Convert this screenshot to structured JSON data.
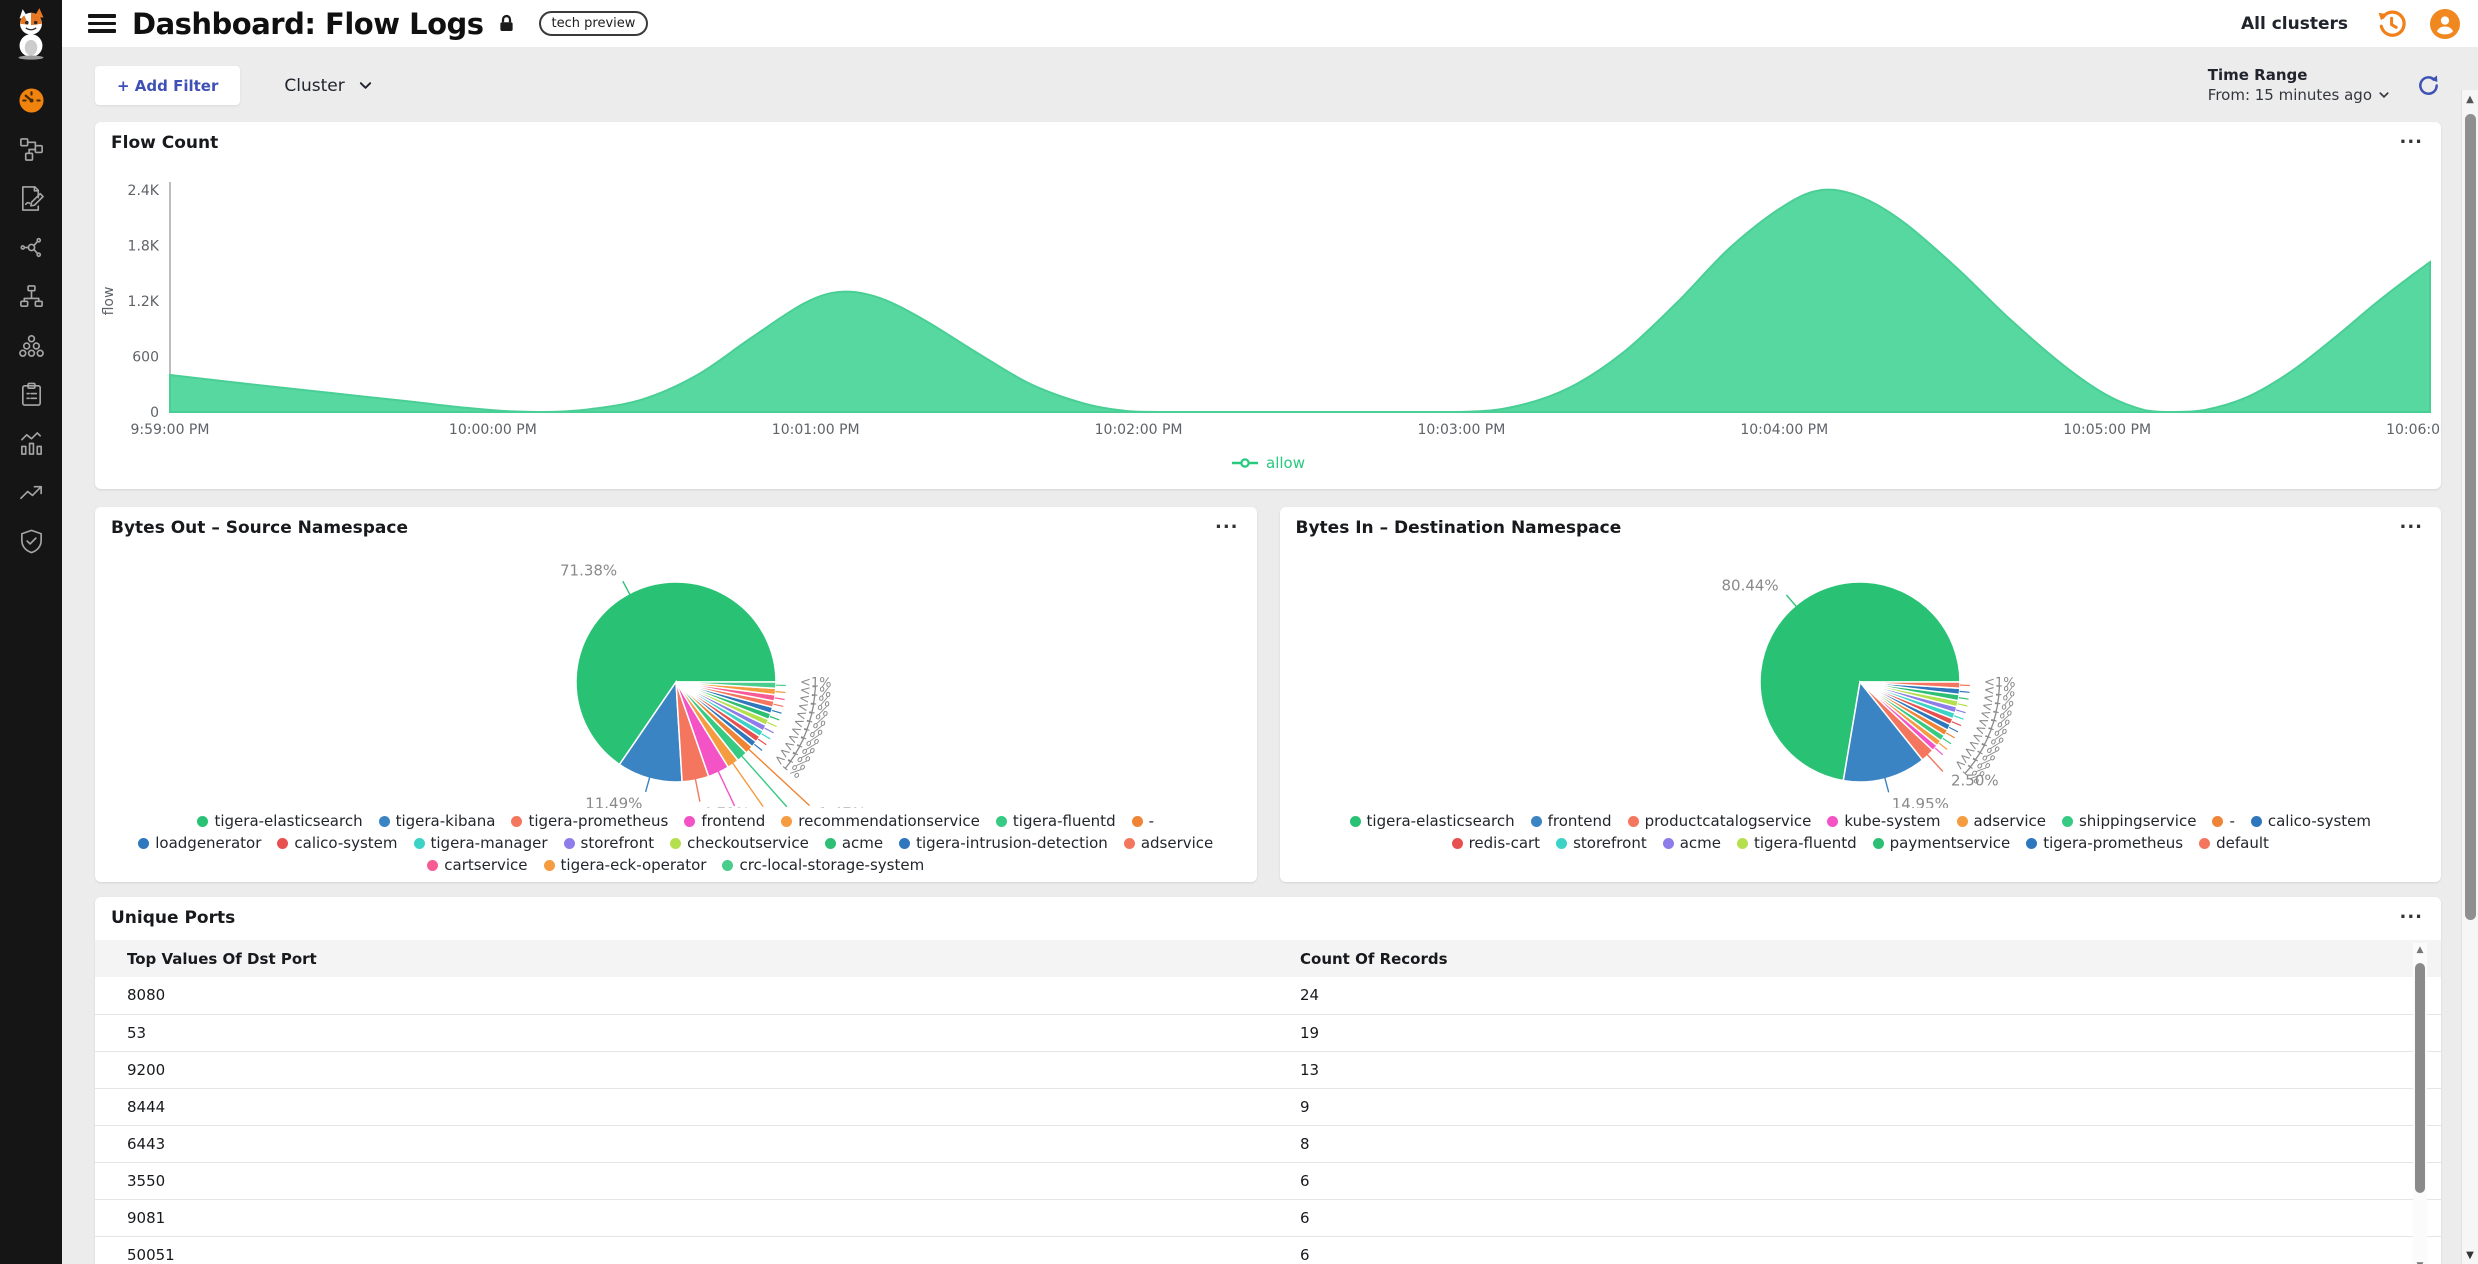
{
  "header": {
    "title": "Dashboard: Flow Logs",
    "badge": "tech preview",
    "cluster_selector": "All clusters"
  },
  "sidebar": {
    "icons": [
      "calico-cat-logo",
      "dashboard-gauge-icon",
      "service-graph-icon",
      "flow-log-edit-icon",
      "share-nodes-icon",
      "sitemap-icon",
      "cluster-nodes-icon",
      "clipboard-icon",
      "stats-chart-icon",
      "trend-up-icon",
      "shield-check-icon"
    ]
  },
  "filter_bar": {
    "add_filter_label": "+ Add Filter",
    "cluster_label": "Cluster",
    "time_range_label": "Time Range",
    "time_range_value": "From: 15 minutes ago"
  },
  "panel_menu_glyph": "...",
  "chart_data": [
    {
      "type": "area",
      "title": "Flow Count",
      "ylabel": "flow",
      "ylim": [
        0,
        2400
      ],
      "y_ticks": [
        "0",
        "600",
        "1.2K",
        "1.8K",
        "2.4K"
      ],
      "x_ticks": [
        "9:59:00 PM",
        "10:00:00 PM",
        "10:01:00 PM",
        "10:02:00 PM",
        "10:03:00 PM",
        "10:04:00 PM",
        "10:05:00 PM",
        "10:06:00 PM"
      ],
      "x_range_seconds": 420,
      "grid": false,
      "legend_position": "bottom",
      "series": [
        {
          "name": "allow",
          "color": "#57d8a0",
          "stroke": "#49cf95",
          "points": [
            [
              0,
              400
            ],
            [
              15,
              300
            ],
            [
              30,
              205
            ],
            [
              45,
              110
            ],
            [
              55,
              45
            ],
            [
              63,
              8
            ],
            [
              70,
              0
            ],
            [
              78,
              30
            ],
            [
              88,
              140
            ],
            [
              98,
              400
            ],
            [
              108,
              800
            ],
            [
              118,
              1180
            ],
            [
              125,
              1300
            ],
            [
              132,
              1230
            ],
            [
              140,
              1000
            ],
            [
              150,
              640
            ],
            [
              160,
              300
            ],
            [
              170,
              90
            ],
            [
              178,
              10
            ],
            [
              184,
              0
            ],
            [
              200,
              0
            ],
            [
              220,
              0
            ],
            [
              240,
              0
            ],
            [
              250,
              60
            ],
            [
              260,
              260
            ],
            [
              270,
              640
            ],
            [
              280,
              1180
            ],
            [
              290,
              1780
            ],
            [
              300,
              2230
            ],
            [
              307,
              2400
            ],
            [
              314,
              2330
            ],
            [
              322,
              2060
            ],
            [
              332,
              1560
            ],
            [
              342,
              1000
            ],
            [
              352,
              500
            ],
            [
              360,
              180
            ],
            [
              367,
              20
            ],
            [
              372,
              0
            ],
            [
              378,
              20
            ],
            [
              386,
              160
            ],
            [
              394,
              430
            ],
            [
              402,
              790
            ],
            [
              410,
              1180
            ],
            [
              416,
              1450
            ],
            [
              420,
              1620
            ]
          ]
        }
      ]
    },
    {
      "type": "pie",
      "title": "Bytes Out – Source Namespace",
      "legend_position": "bottom",
      "slices": [
        {
          "label": "tigera-elasticsearch",
          "value": 71.38,
          "pct_label": "71.38%",
          "color": "#29c274"
        },
        {
          "label": "tigera-kibana",
          "value": 11.49,
          "pct_label": "11.49%",
          "color": "#3b84c4"
        },
        {
          "label": "tigera-prometheus",
          "value": 4.71,
          "pct_label": "4.71%",
          "color": "#f4765e"
        },
        {
          "label": "frontend",
          "value": 3.78,
          "pct_label": "3.78%",
          "color": "#f453c6"
        },
        {
          "label": "recommendationservice",
          "value": 2.07,
          "pct_label": "2.07%",
          "color": "#f59b40"
        },
        {
          "label": "tigera-fluentd",
          "value": 1.95,
          "pct_label": "1.95%",
          "color": "#37ca83"
        },
        {
          "label": "-",
          "value": 1.47,
          "pct_label": "1.47%",
          "color": "#f08436"
        },
        {
          "label": "loadgenerator",
          "value": 0.29,
          "pct_label": "<1%",
          "color": "#2e77bd"
        },
        {
          "label": "calico-system",
          "value": 0.29,
          "pct_label": "<1%",
          "color": "#e8504f"
        },
        {
          "label": "tigera-manager",
          "value": 0.29,
          "pct_label": "<1%",
          "color": "#3bd3c5"
        },
        {
          "label": "storefront",
          "value": 0.29,
          "pct_label": "<1%",
          "color": "#8d7cea"
        },
        {
          "label": "checkoutservice",
          "value": 0.29,
          "pct_label": "<1%",
          "color": "#b5e04e"
        },
        {
          "label": "acme",
          "value": 0.29,
          "pct_label": "<1%",
          "color": "#2dbf73"
        },
        {
          "label": "tigera-intrusion-detection",
          "value": 0.29,
          "pct_label": "<1%",
          "color": "#2e77bd"
        },
        {
          "label": "adservice",
          "value": 0.29,
          "pct_label": "<1%",
          "color": "#f4765e"
        },
        {
          "label": "cartservice",
          "value": 0.29,
          "pct_label": "<1%",
          "color": "#f75b96"
        },
        {
          "label": "tigera-eck-operator",
          "value": 0.29,
          "pct_label": "<1%",
          "color": "#f59b40"
        },
        {
          "label": "crc-local-storage-system",
          "value": 0.29,
          "pct_label": "<1%",
          "color": "#49cc8c"
        }
      ]
    },
    {
      "type": "pie",
      "title": "Bytes In – Destination Namespace",
      "legend_position": "bottom",
      "slices": [
        {
          "label": "tigera-elasticsearch",
          "value": 80.44,
          "pct_label": "80.44%",
          "color": "#29c274"
        },
        {
          "label": "frontend",
          "value": 14.95,
          "pct_label": "14.95%",
          "color": "#3b84c4"
        },
        {
          "label": "productcatalogservice",
          "value": 2.5,
          "pct_label": "2.50%",
          "color": "#f4765e"
        },
        {
          "label": "kube-system",
          "value": 0.18,
          "pct_label": "<1%",
          "color": "#f453c6"
        },
        {
          "label": "adservice",
          "value": 0.18,
          "pct_label": "<1%",
          "color": "#f59b40"
        },
        {
          "label": "shippingservice",
          "value": 0.18,
          "pct_label": "<1%",
          "color": "#37ca83"
        },
        {
          "label": "-",
          "value": 0.18,
          "pct_label": "<1%",
          "color": "#f08436"
        },
        {
          "label": "calico-system",
          "value": 0.18,
          "pct_label": "<1%",
          "color": "#2e77bd"
        },
        {
          "label": "redis-cart",
          "value": 0.18,
          "pct_label": "<1%",
          "color": "#e8504f"
        },
        {
          "label": "storefront",
          "value": 0.18,
          "pct_label": "<1%",
          "color": "#3bd3c5"
        },
        {
          "label": "acme",
          "value": 0.18,
          "pct_label": "<1%",
          "color": "#8d7cea"
        },
        {
          "label": "tigera-fluentd",
          "value": 0.18,
          "pct_label": "<1%",
          "color": "#b5e04e"
        },
        {
          "label": "paymentservice",
          "value": 0.18,
          "pct_label": "<1%",
          "color": "#2dbf73"
        },
        {
          "label": "tigera-prometheus",
          "value": 0.18,
          "pct_label": "<1%",
          "color": "#2e77bd"
        },
        {
          "label": "default",
          "value": 0.18,
          "pct_label": "<1%",
          "color": "#f4765e"
        }
      ]
    },
    {
      "type": "table",
      "title": "Unique Ports",
      "columns": [
        "Top Values Of Dst Port",
        "Count Of Records"
      ],
      "rows": [
        [
          "8080",
          "24"
        ],
        [
          "53",
          "19"
        ],
        [
          "9200",
          "13"
        ],
        [
          "8444",
          "9"
        ],
        [
          "6443",
          "8"
        ],
        [
          "3550",
          "6"
        ],
        [
          "9081",
          "6"
        ],
        [
          "50051",
          "6"
        ]
      ]
    }
  ],
  "colors": {
    "accent_orange": "#f28019",
    "accent_blue": "#3f51b5",
    "area_green": "#57d8a0",
    "allow_green": "#27c97e",
    "sidebar_bg": "#151515",
    "content_bg": "#ececec"
  }
}
